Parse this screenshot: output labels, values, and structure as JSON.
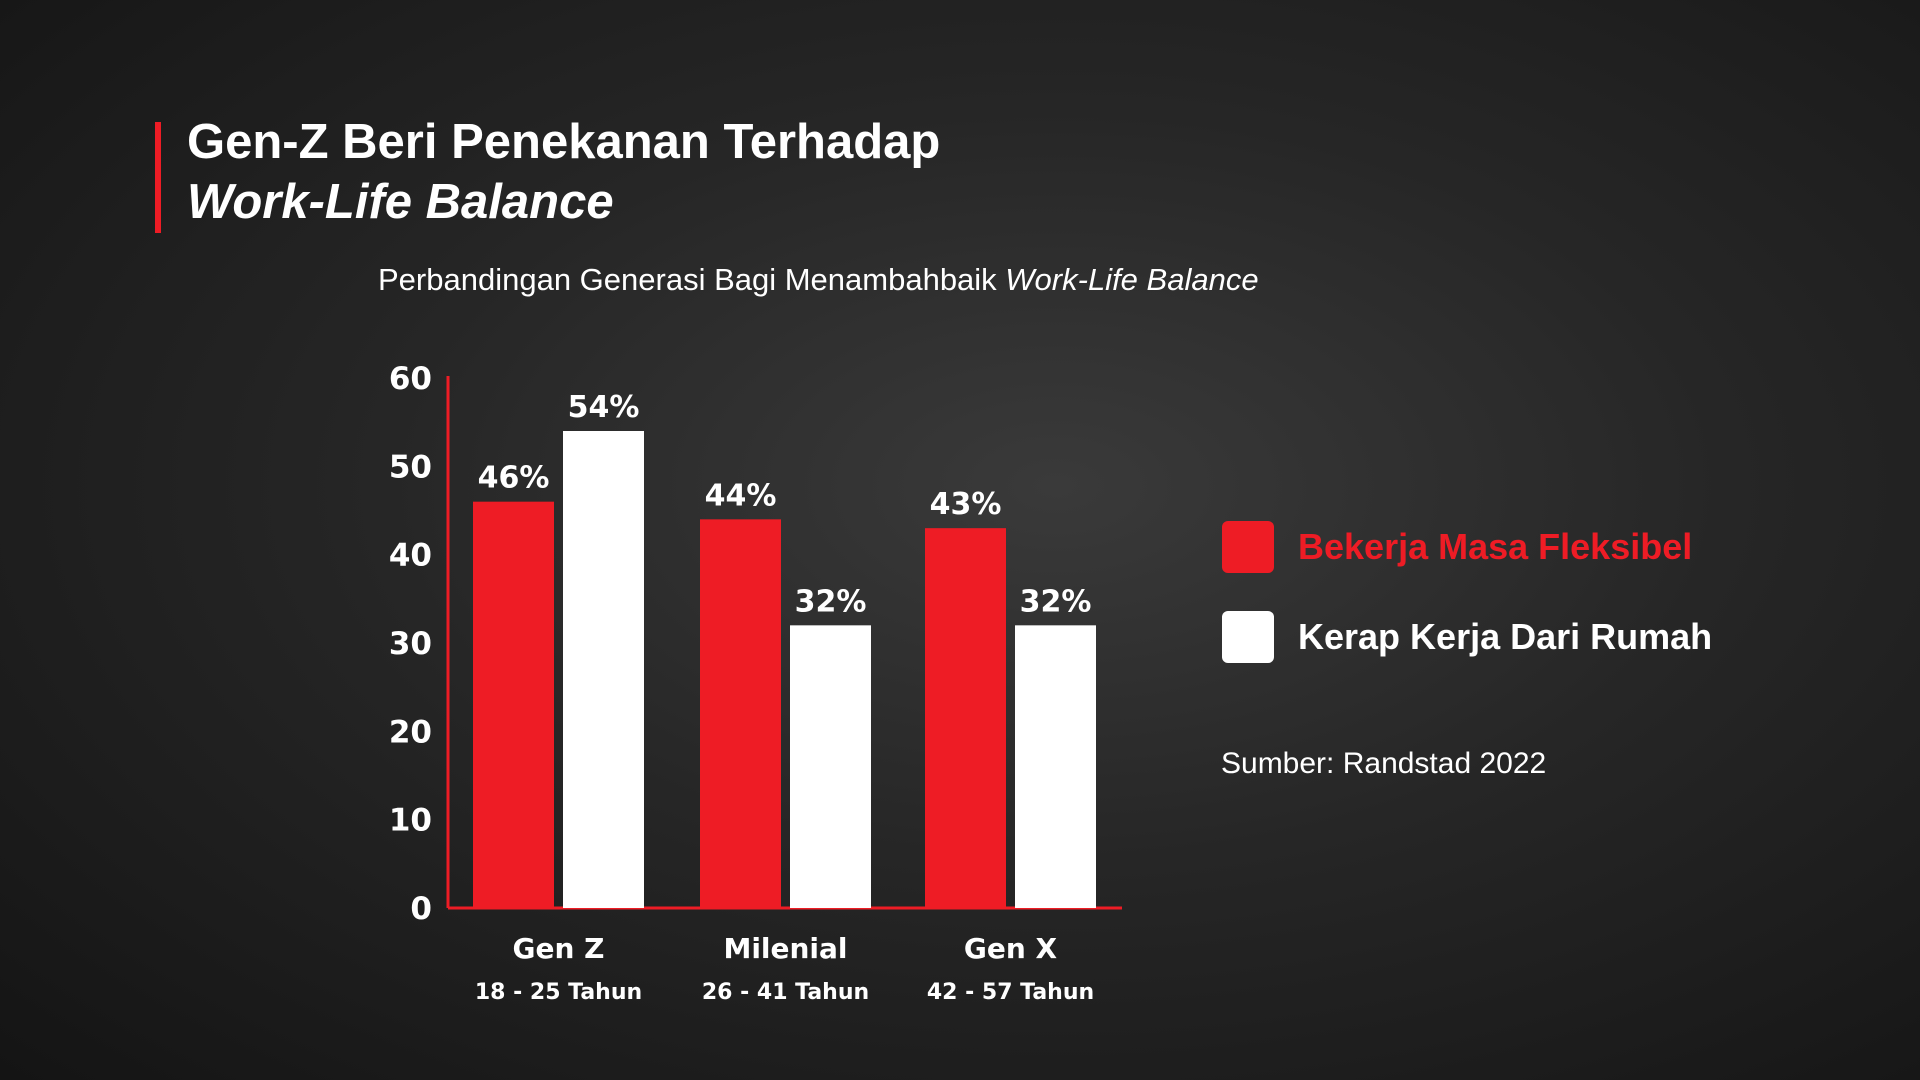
{
  "title": {
    "line1": "Gen-Z Beri Penekanan Terhadap",
    "line2": "Work-Life Balance"
  },
  "subtitle": {
    "text": "Perbandingan Generasi Bagi Menambahbaik ",
    "italic": "Work-Life Balance"
  },
  "source": "Sumber: Randstad 2022",
  "colors": {
    "accent": "#ee1c25",
    "white": "#ffffff",
    "background": "#222222"
  },
  "chart_data": {
    "type": "bar",
    "title": "",
    "xlabel": "",
    "ylabel": "",
    "ylim": [
      0,
      60
    ],
    "yticks": [
      0,
      10,
      20,
      30,
      40,
      50,
      60
    ],
    "grid": false,
    "legend_position": "right",
    "categories": [
      "Gen Z",
      "Milenial",
      "Gen X"
    ],
    "category_sublabels": [
      "18 - 25 Tahun",
      "26 - 41 Tahun",
      "42 - 57 Tahun"
    ],
    "series": [
      {
        "name": "Bekerja Masa Fleksibel",
        "color": "#ee1c25",
        "values": [
          46,
          44,
          43
        ],
        "labels": [
          "46%",
          "44%",
          "43%"
        ]
      },
      {
        "name": "Kerap Kerja Dari Rumah",
        "color": "#ffffff",
        "values": [
          54,
          32,
          32
        ],
        "labels": [
          "54%",
          "32%",
          "32%"
        ]
      }
    ]
  }
}
